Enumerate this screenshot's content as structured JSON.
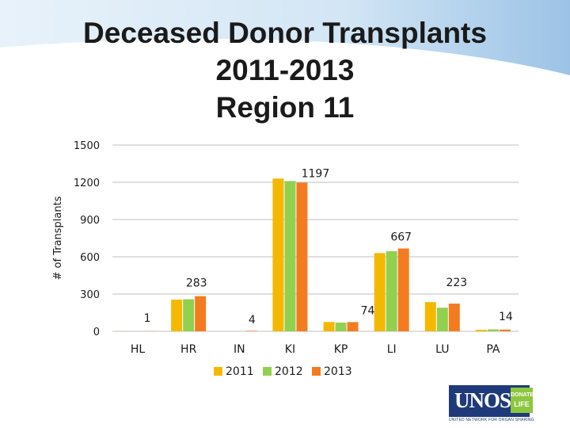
{
  "title_lines": [
    "Deceased Donor Transplants",
    "2011-2013",
    "Region 11"
  ],
  "colors": {
    "series_2011": "#f5b800",
    "series_2012": "#92d050",
    "series_2013": "#f47c20",
    "gridline": "#bfbfbf",
    "axis_text": "#1a1a1a",
    "swoosh": "#d3e6f5",
    "logo_blue": "#1f3a7a",
    "logo_green": "#8dc63f"
  },
  "logo": {
    "text": "UNOS",
    "badge_line1": "DONATE",
    "badge_line2": "LIFE",
    "tagline": "UNITED NETWORK FOR ORGAN SHARING",
    "icon": "unos-logo"
  },
  "chart_data": {
    "type": "bar",
    "ylabel": "# of Transplants",
    "xlabel": "",
    "ylim": [
      0,
      1500
    ],
    "yticks": [
      0,
      300,
      600,
      900,
      1200,
      1500
    ],
    "grid": true,
    "legend_position": "bottom",
    "categories": [
      "HL",
      "HR",
      "IN",
      "KI",
      "KP",
      "LI",
      "LU",
      "PA"
    ],
    "series": [
      {
        "name": "2011",
        "values": [
          1,
          255,
          0,
          1230,
          75,
          630,
          235,
          12
        ]
      },
      {
        "name": "2012",
        "values": [
          0,
          258,
          0,
          1210,
          70,
          645,
          190,
          16
        ]
      },
      {
        "name": "2013",
        "values": [
          1,
          283,
          4,
          1197,
          74,
          667,
          223,
          14
        ]
      }
    ],
    "data_labels": [
      {
        "category": "HL",
        "text": "1"
      },
      {
        "category": "HR",
        "text": "283"
      },
      {
        "category": "IN",
        "text": "4"
      },
      {
        "category": "KI",
        "text": "1197"
      },
      {
        "category": "KP",
        "text": "74"
      },
      {
        "category": "LI",
        "text": "667"
      },
      {
        "category": "LU",
        "text": "223"
      },
      {
        "category": "PA",
        "text": "14"
      }
    ]
  }
}
